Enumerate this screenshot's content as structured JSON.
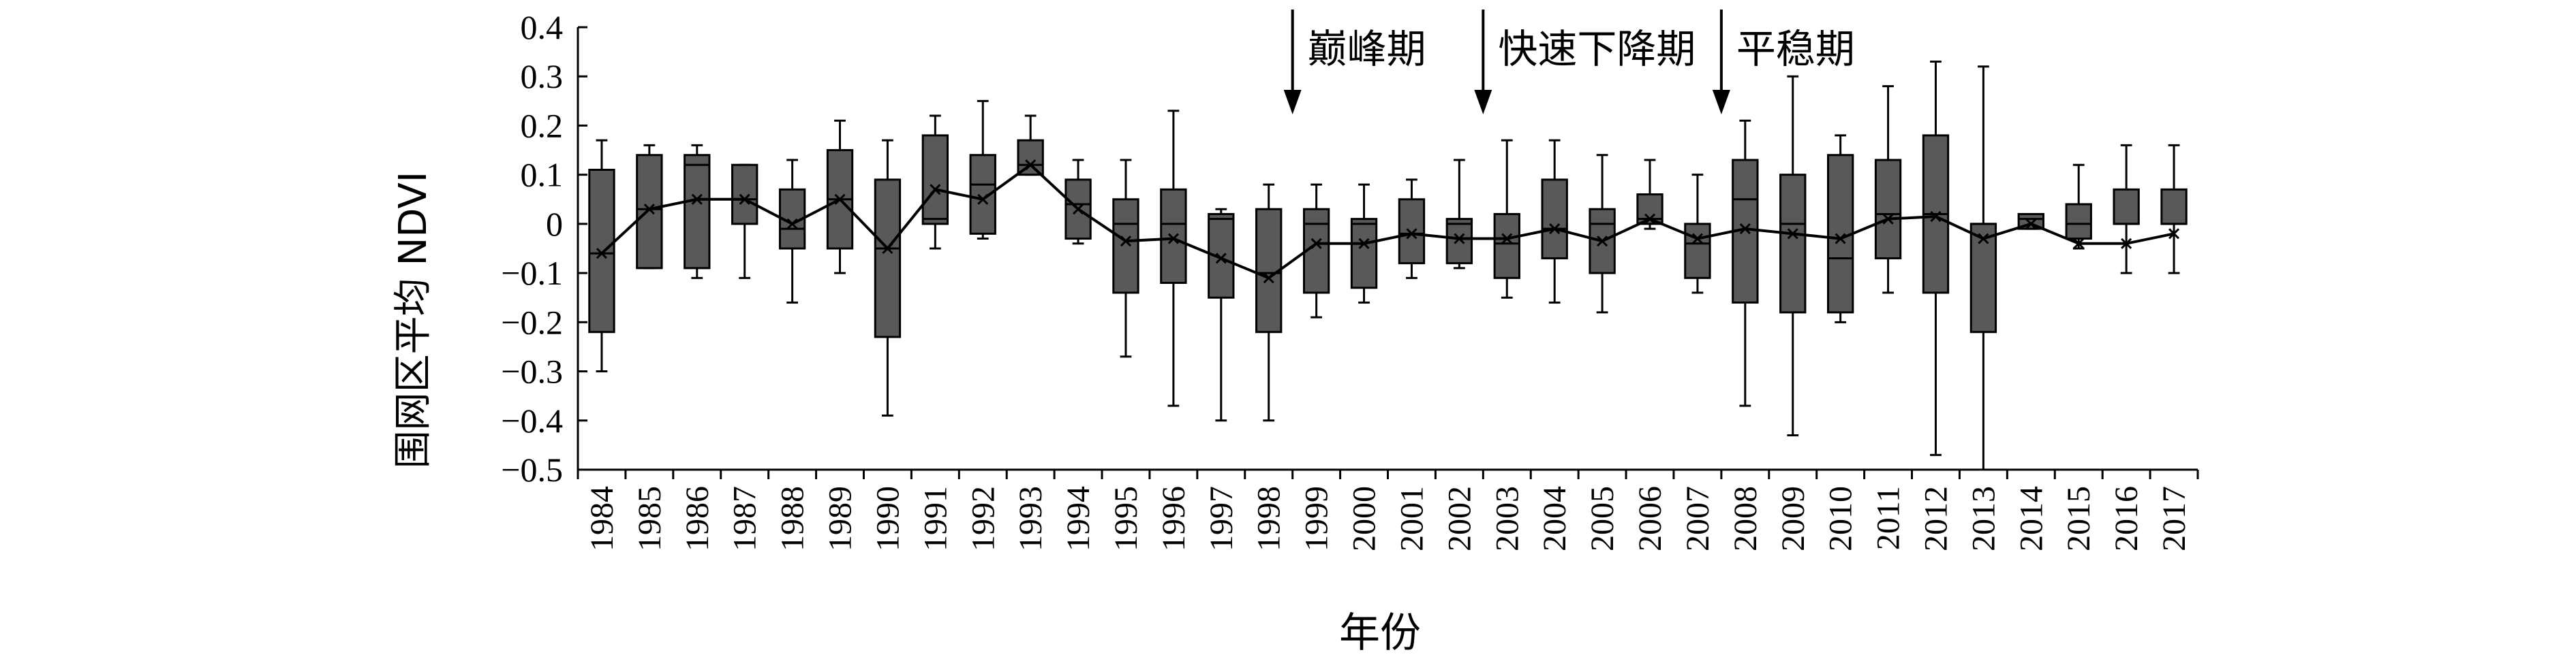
{
  "chart_data": {
    "type": "box",
    "ylabel": "围网区平均 NDVI",
    "xlabel": "年份",
    "ylim": [
      -0.5,
      0.4
    ],
    "y_ticks": [
      0.4,
      0.3,
      0.2,
      0.1,
      0,
      -0.1,
      -0.2,
      -0.3,
      -0.4,
      -0.5
    ],
    "y_tick_labels": [
      "0.4",
      "0.3",
      "0.2",
      "0.1",
      "0",
      "−0.1",
      "−0.2",
      "−0.3",
      "−0.4",
      "−0.5"
    ],
    "grid": false,
    "legend": "none",
    "colors": {
      "box_fill": "#595959",
      "stroke": "#000000",
      "mean_line": "#000000"
    },
    "categories": [
      "1984",
      "1985",
      "1986",
      "1987",
      "1988",
      "1989",
      "1990",
      "1991",
      "1992",
      "1993",
      "1994",
      "1995",
      "1996",
      "1997",
      "1998",
      "1999",
      "2000",
      "2001",
      "2002",
      "2003",
      "2004",
      "2005",
      "2006",
      "2007",
      "2008",
      "2009",
      "2010",
      "2011",
      "2012",
      "2013",
      "2014",
      "2015",
      "2016",
      "2017"
    ],
    "boxes": [
      {
        "min": -0.3,
        "q1": -0.22,
        "median": -0.06,
        "q3": 0.11,
        "max": 0.17
      },
      {
        "min": -0.09,
        "q1": -0.09,
        "median": 0.03,
        "q3": 0.14,
        "max": 0.16
      },
      {
        "min": -0.11,
        "q1": -0.09,
        "median": 0.12,
        "q3": 0.14,
        "max": 0.16
      },
      {
        "min": -0.11,
        "q1": 0.0,
        "median": 0.05,
        "q3": 0.12,
        "max": 0.12
      },
      {
        "min": -0.16,
        "q1": -0.05,
        "median": -0.01,
        "q3": 0.07,
        "max": 0.13
      },
      {
        "min": -0.1,
        "q1": -0.05,
        "median": 0.05,
        "q3": 0.15,
        "max": 0.21
      },
      {
        "min": -0.39,
        "q1": -0.23,
        "median": -0.05,
        "q3": 0.09,
        "max": 0.17
      },
      {
        "min": -0.05,
        "q1": 0.0,
        "median": 0.01,
        "q3": 0.18,
        "max": 0.22
      },
      {
        "min": -0.03,
        "q1": -0.02,
        "median": 0.08,
        "q3": 0.14,
        "max": 0.25
      },
      {
        "min": 0.1,
        "q1": 0.1,
        "median": 0.12,
        "q3": 0.17,
        "max": 0.22
      },
      {
        "min": -0.04,
        "q1": -0.03,
        "median": 0.04,
        "q3": 0.09,
        "max": 0.13
      },
      {
        "min": -0.27,
        "q1": -0.14,
        "median": 0.0,
        "q3": 0.05,
        "max": 0.13
      },
      {
        "min": -0.37,
        "q1": -0.12,
        "median": 0.0,
        "q3": 0.07,
        "max": 0.23
      },
      {
        "min": -0.4,
        "q1": -0.15,
        "median": 0.01,
        "q3": 0.02,
        "max": 0.03
      },
      {
        "min": -0.4,
        "q1": -0.22,
        "median": -0.1,
        "q3": 0.03,
        "max": 0.08
      },
      {
        "min": -0.19,
        "q1": -0.14,
        "median": 0.0,
        "q3": 0.03,
        "max": 0.08
      },
      {
        "min": -0.16,
        "q1": -0.13,
        "median": 0.0,
        "q3": 0.01,
        "max": 0.08
      },
      {
        "min": -0.11,
        "q1": -0.08,
        "median": -0.02,
        "q3": 0.05,
        "max": 0.09
      },
      {
        "min": -0.09,
        "q1": -0.08,
        "median": 0.0,
        "q3": 0.01,
        "max": 0.13
      },
      {
        "min": -0.15,
        "q1": -0.11,
        "median": -0.04,
        "q3": 0.02,
        "max": 0.17
      },
      {
        "min": -0.16,
        "q1": -0.07,
        "median": -0.01,
        "q3": 0.09,
        "max": 0.17
      },
      {
        "min": -0.18,
        "q1": -0.1,
        "median": 0.0,
        "q3": 0.03,
        "max": 0.14
      },
      {
        "min": -0.01,
        "q1": 0.0,
        "median": 0.01,
        "q3": 0.06,
        "max": 0.13
      },
      {
        "min": -0.14,
        "q1": -0.11,
        "median": -0.04,
        "q3": 0.0,
        "max": 0.1
      },
      {
        "min": -0.37,
        "q1": -0.16,
        "median": 0.05,
        "q3": 0.13,
        "max": 0.21
      },
      {
        "min": -0.43,
        "q1": -0.18,
        "median": 0.0,
        "q3": 0.1,
        "max": 0.3
      },
      {
        "min": -0.2,
        "q1": -0.18,
        "median": -0.07,
        "q3": 0.14,
        "max": 0.18
      },
      {
        "min": -0.14,
        "q1": -0.07,
        "median": 0.02,
        "q3": 0.13,
        "max": 0.28
      },
      {
        "min": -0.47,
        "q1": -0.14,
        "median": 0.02,
        "q3": 0.18,
        "max": 0.33
      },
      {
        "min": -0.5,
        "q1": -0.22,
        "median": 0.0,
        "q3": 0.0,
        "max": 0.32
      },
      {
        "min": -0.01,
        "q1": -0.01,
        "median": 0.01,
        "q3": 0.02,
        "max": 0.02
      },
      {
        "min": -0.05,
        "q1": -0.03,
        "median": 0.0,
        "q3": 0.04,
        "max": 0.12
      },
      {
        "min": -0.1,
        "q1": 0.0,
        "median": 0.0,
        "q3": 0.07,
        "max": 0.16
      },
      {
        "min": -0.1,
        "q1": 0.0,
        "median": 0.0,
        "q3": 0.07,
        "max": 0.16
      }
    ],
    "means": [
      -0.06,
      0.03,
      0.05,
      0.05,
      0.0,
      0.05,
      -0.05,
      0.07,
      0.05,
      0.12,
      0.03,
      -0.035,
      -0.03,
      -0.07,
      -0.11,
      -0.04,
      -0.04,
      -0.02,
      -0.03,
      -0.03,
      -0.01,
      -0.035,
      0.01,
      -0.03,
      -0.01,
      -0.02,
      -0.03,
      0.01,
      0.015,
      -0.03,
      0.0,
      -0.04,
      -0.04,
      -0.02
    ],
    "annotations": [
      {
        "text": "巅峰期",
        "x_between": [
          "1998",
          "1999"
        ]
      },
      {
        "text": "快速下降期",
        "x_between": [
          "2002",
          "2003"
        ]
      },
      {
        "text": "平稳期",
        "x_between": [
          "2007",
          "2008"
        ]
      }
    ]
  }
}
